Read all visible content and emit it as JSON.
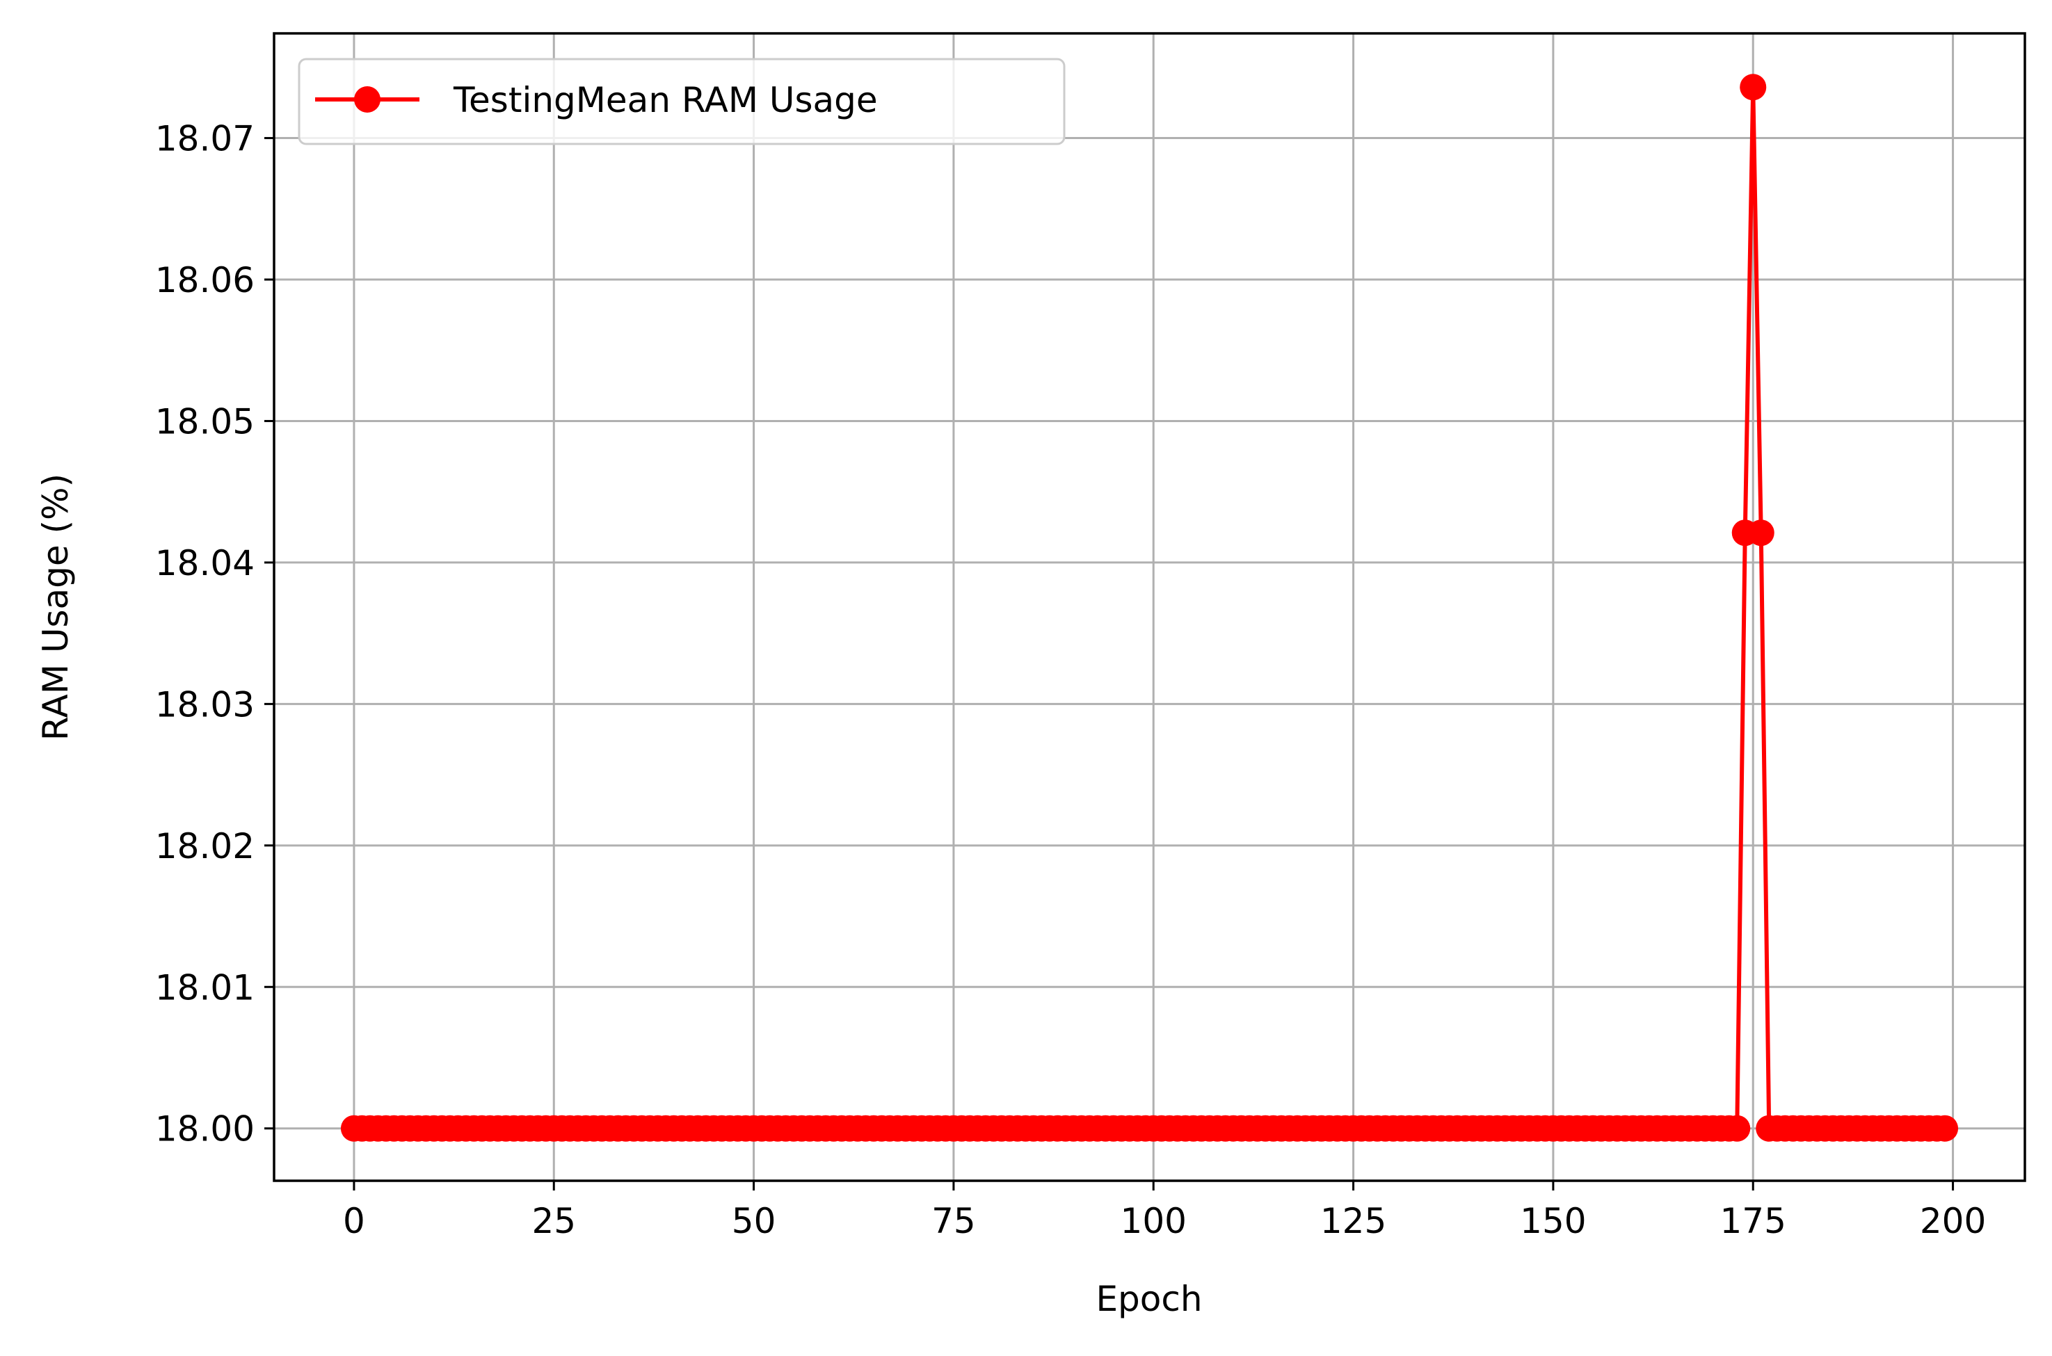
{
  "chart_data": {
    "type": "line",
    "xlabel": "Epoch",
    "ylabel": "RAM Usage (%)",
    "xlim": [
      -10,
      209
    ],
    "ylim": [
      17.9963,
      18.0774
    ],
    "x_ticks": [
      0,
      25,
      50,
      75,
      100,
      125,
      150,
      175,
      200
    ],
    "y_ticks": [
      18.0,
      18.01,
      18.02,
      18.03,
      18.04,
      18.05,
      18.06,
      18.07
    ],
    "y_tick_labels": [
      "18.00",
      "18.01",
      "18.02",
      "18.03",
      "18.04",
      "18.05",
      "18.06",
      "18.07"
    ],
    "grid": true,
    "legend_position": "top-left",
    "series": [
      {
        "name": "TestingMean RAM Usage",
        "color": "#ff0000",
        "marker": "circle",
        "x_range": [
          0,
          199
        ],
        "default_value": 18.0,
        "overrides": {
          "174": 18.0421,
          "175": 18.0736,
          "176": 18.0421
        }
      }
    ]
  }
}
